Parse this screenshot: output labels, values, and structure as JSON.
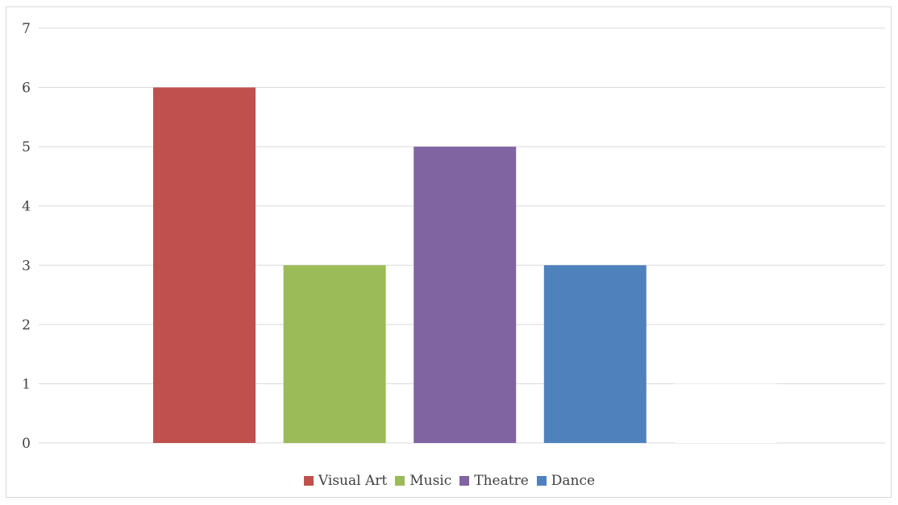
{
  "chart_data": {
    "type": "bar",
    "categories": [
      "Visual Art",
      "Music",
      "Theatre",
      "Dance",
      ""
    ],
    "values": [
      6,
      3,
      5,
      3,
      1
    ],
    "colors": [
      "#c0504d",
      "#9bbb59",
      "#8064a2",
      "#4f81bd",
      "#ffffff"
    ],
    "ylim": [
      0,
      7
    ],
    "yticks": [
      "0",
      "1",
      "2",
      "3",
      "4",
      "5",
      "6",
      "7"
    ],
    "grid": true,
    "legend_position": "bottom",
    "legend": [
      {
        "label": "Visual Art",
        "color": "#c0504d"
      },
      {
        "label": "Music",
        "color": "#9bbb59"
      },
      {
        "label": "Theatre",
        "color": "#8064a2"
      },
      {
        "label": "Dance",
        "color": "#4f81bd"
      }
    ]
  }
}
